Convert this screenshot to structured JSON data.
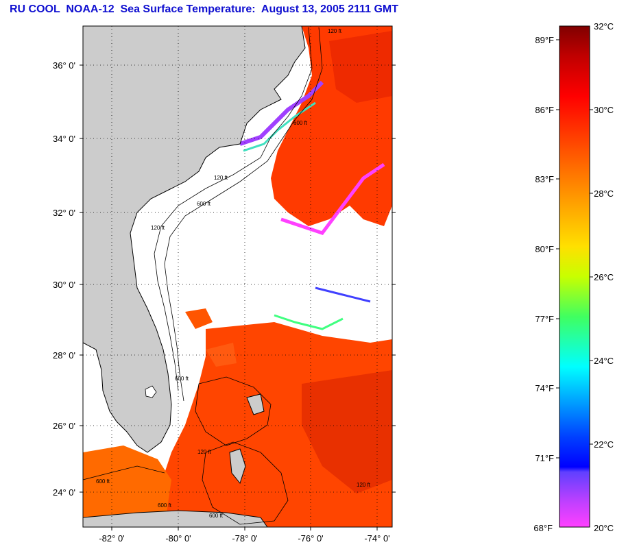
{
  "title": "RU COOL  NOAA-12  Sea Surface Temperature:  August 13, 2005 2111 GMT",
  "map": {
    "latitude_labels": [
      "36° 0'",
      "34° 0'",
      "32° 0'",
      "30° 0'",
      "28° 0'",
      "26° 0'",
      "24° 0'"
    ],
    "longitude_labels": [
      "-82° 0'",
      "-80° 0'",
      "-78° 0'",
      "-76° 0'",
      "-74° 0'"
    ],
    "contour_labels": [
      "120 ft",
      "600 ft",
      "120 ft",
      "600 ft",
      "120 ft",
      "600 ft",
      "120 ft",
      "600 ft",
      "600 ft",
      "120 ft",
      "600 ft"
    ],
    "grid": "dotted",
    "colors": {
      "land": "#cccccc",
      "cloud": "#ffffff",
      "warm_water": "#ff3a00"
    }
  },
  "colorbar": {
    "celsius_labels": [
      "32°C",
      "30°C",
      "28°C",
      "26°C",
      "24°C",
      "22°C",
      "20°C"
    ],
    "fahrenheit_labels": [
      "89°F",
      "86°F",
      "83°F",
      "80°F",
      "77°F",
      "74°F",
      "71°F",
      "68°F"
    ],
    "range_celsius": [
      20,
      32
    ],
    "range_fahrenheit": [
      68,
      89.6
    ]
  }
}
